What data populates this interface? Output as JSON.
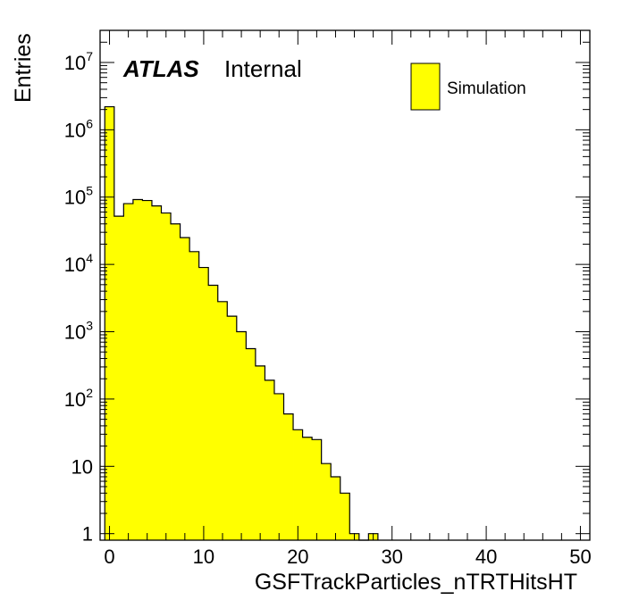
{
  "chart_data": {
    "type": "bar",
    "xlabel": "GSFTrackParticles_nTRTHitsHT",
    "ylabel": "Entries",
    "x_range": [
      -1,
      51
    ],
    "ylim": [
      0.8,
      30000000
    ],
    "y_scale": "log",
    "bin_width": 1,
    "bins": [
      {
        "x": 0,
        "value": 2200000
      },
      {
        "x": 1,
        "value": 52000
      },
      {
        "x": 2,
        "value": 80000
      },
      {
        "x": 3,
        "value": 92000
      },
      {
        "x": 4,
        "value": 89000
      },
      {
        "x": 5,
        "value": 74000
      },
      {
        "x": 6,
        "value": 58000
      },
      {
        "x": 7,
        "value": 40000
      },
      {
        "x": 8,
        "value": 25000
      },
      {
        "x": 9,
        "value": 15500
      },
      {
        "x": 10,
        "value": 9000
      },
      {
        "x": 11,
        "value": 4900
      },
      {
        "x": 12,
        "value": 2800
      },
      {
        "x": 13,
        "value": 1700
      },
      {
        "x": 14,
        "value": 1000
      },
      {
        "x": 15,
        "value": 560
      },
      {
        "x": 16,
        "value": 310
      },
      {
        "x": 17,
        "value": 190
      },
      {
        "x": 18,
        "value": 120
      },
      {
        "x": 19,
        "value": 60
      },
      {
        "x": 20,
        "value": 35
      },
      {
        "x": 21,
        "value": 27
      },
      {
        "x": 22,
        "value": 25
      },
      {
        "x": 23,
        "value": 11
      },
      {
        "x": 24,
        "value": 7
      },
      {
        "x": 25,
        "value": 4
      },
      {
        "x": 26,
        "value": 1
      },
      {
        "x": 27,
        "value": 0
      },
      {
        "x": 28,
        "value": 1
      }
    ],
    "x_ticks": [
      {
        "value": 0,
        "label": "0"
      },
      {
        "value": 10,
        "label": "10"
      },
      {
        "value": 20,
        "label": "20"
      },
      {
        "value": 30,
        "label": "30"
      },
      {
        "value": 40,
        "label": "40"
      },
      {
        "value": 50,
        "label": "50"
      }
    ],
    "y_ticks": [
      {
        "value": 1,
        "base": "1",
        "exp": ""
      },
      {
        "value": 10,
        "base": "10",
        "exp": ""
      },
      {
        "value": 100,
        "base": "10",
        "exp": "2"
      },
      {
        "value": 1000,
        "base": "10",
        "exp": "3"
      },
      {
        "value": 10000,
        "base": "10",
        "exp": "4"
      },
      {
        "value": 100000,
        "base": "10",
        "exp": "5"
      },
      {
        "value": 1000000,
        "base": "10",
        "exp": "6"
      },
      {
        "value": 10000000,
        "base": "10",
        "exp": "7"
      }
    ],
    "fill_color": "#ffff00",
    "line_color": "#000000",
    "legend": {
      "entries": [
        "Simulation"
      ],
      "placement": "top-right"
    },
    "label_atlas": "ATLAS",
    "label_status": "Internal",
    "grid": false
  }
}
